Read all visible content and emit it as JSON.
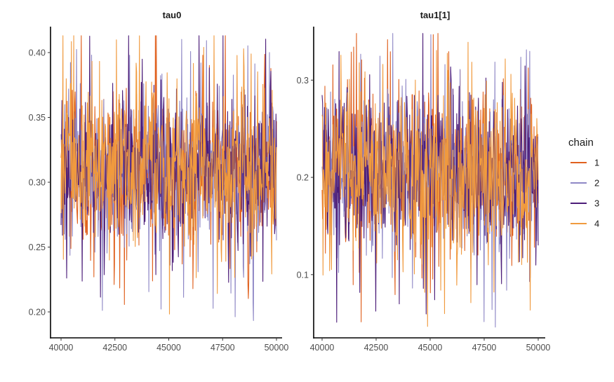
{
  "chart_data": [
    {
      "type": "line",
      "title": "tau0",
      "xlabel": "",
      "ylabel": "",
      "xlim": [
        40000,
        50000
      ],
      "ylim": [
        0.18,
        0.42
      ],
      "x_ticks": [
        40000,
        42500,
        45000,
        47500,
        50000
      ],
      "x_tick_labels": [
        "40000",
        "42500",
        "45000",
        "47500",
        "50000"
      ],
      "y_ticks": [
        0.2,
        0.25,
        0.3,
        0.35,
        0.4
      ],
      "y_tick_labels": [
        "0.20",
        "0.25",
        "0.30",
        "0.35",
        "0.40"
      ],
      "trace": {
        "iterations": [
          40000,
          50000
        ],
        "mean": 0.309,
        "sd": 0.031,
        "min": 0.187,
        "max": 0.413
      }
    },
    {
      "type": "line",
      "title": "tau1[1]",
      "xlabel": "",
      "ylabel": "",
      "xlim": [
        40000,
        50000
      ],
      "ylim": [
        0.035,
        0.355
      ],
      "x_ticks": [
        40000,
        42500,
        45000,
        47500,
        50000
      ],
      "x_tick_labels": [
        "40000",
        "42500",
        "45000",
        "47500",
        "50000"
      ],
      "y_ticks": [
        0.1,
        0.2,
        0.3
      ],
      "y_tick_labels": [
        "0.1",
        "0.2",
        "0.3"
      ],
      "trace": {
        "iterations": [
          40000,
          50000
        ],
        "mean": 0.205,
        "sd": 0.042,
        "min": 0.042,
        "max": 0.348
      }
    }
  ],
  "legend": {
    "title": "chain",
    "placement": "right",
    "entries": [
      {
        "label": "1",
        "color": "#e0611f"
      },
      {
        "label": "2",
        "color": "#8f88c6"
      },
      {
        "label": "3",
        "color": "#4c1d79"
      },
      {
        "label": "4",
        "color": "#f09a3e"
      }
    ]
  }
}
